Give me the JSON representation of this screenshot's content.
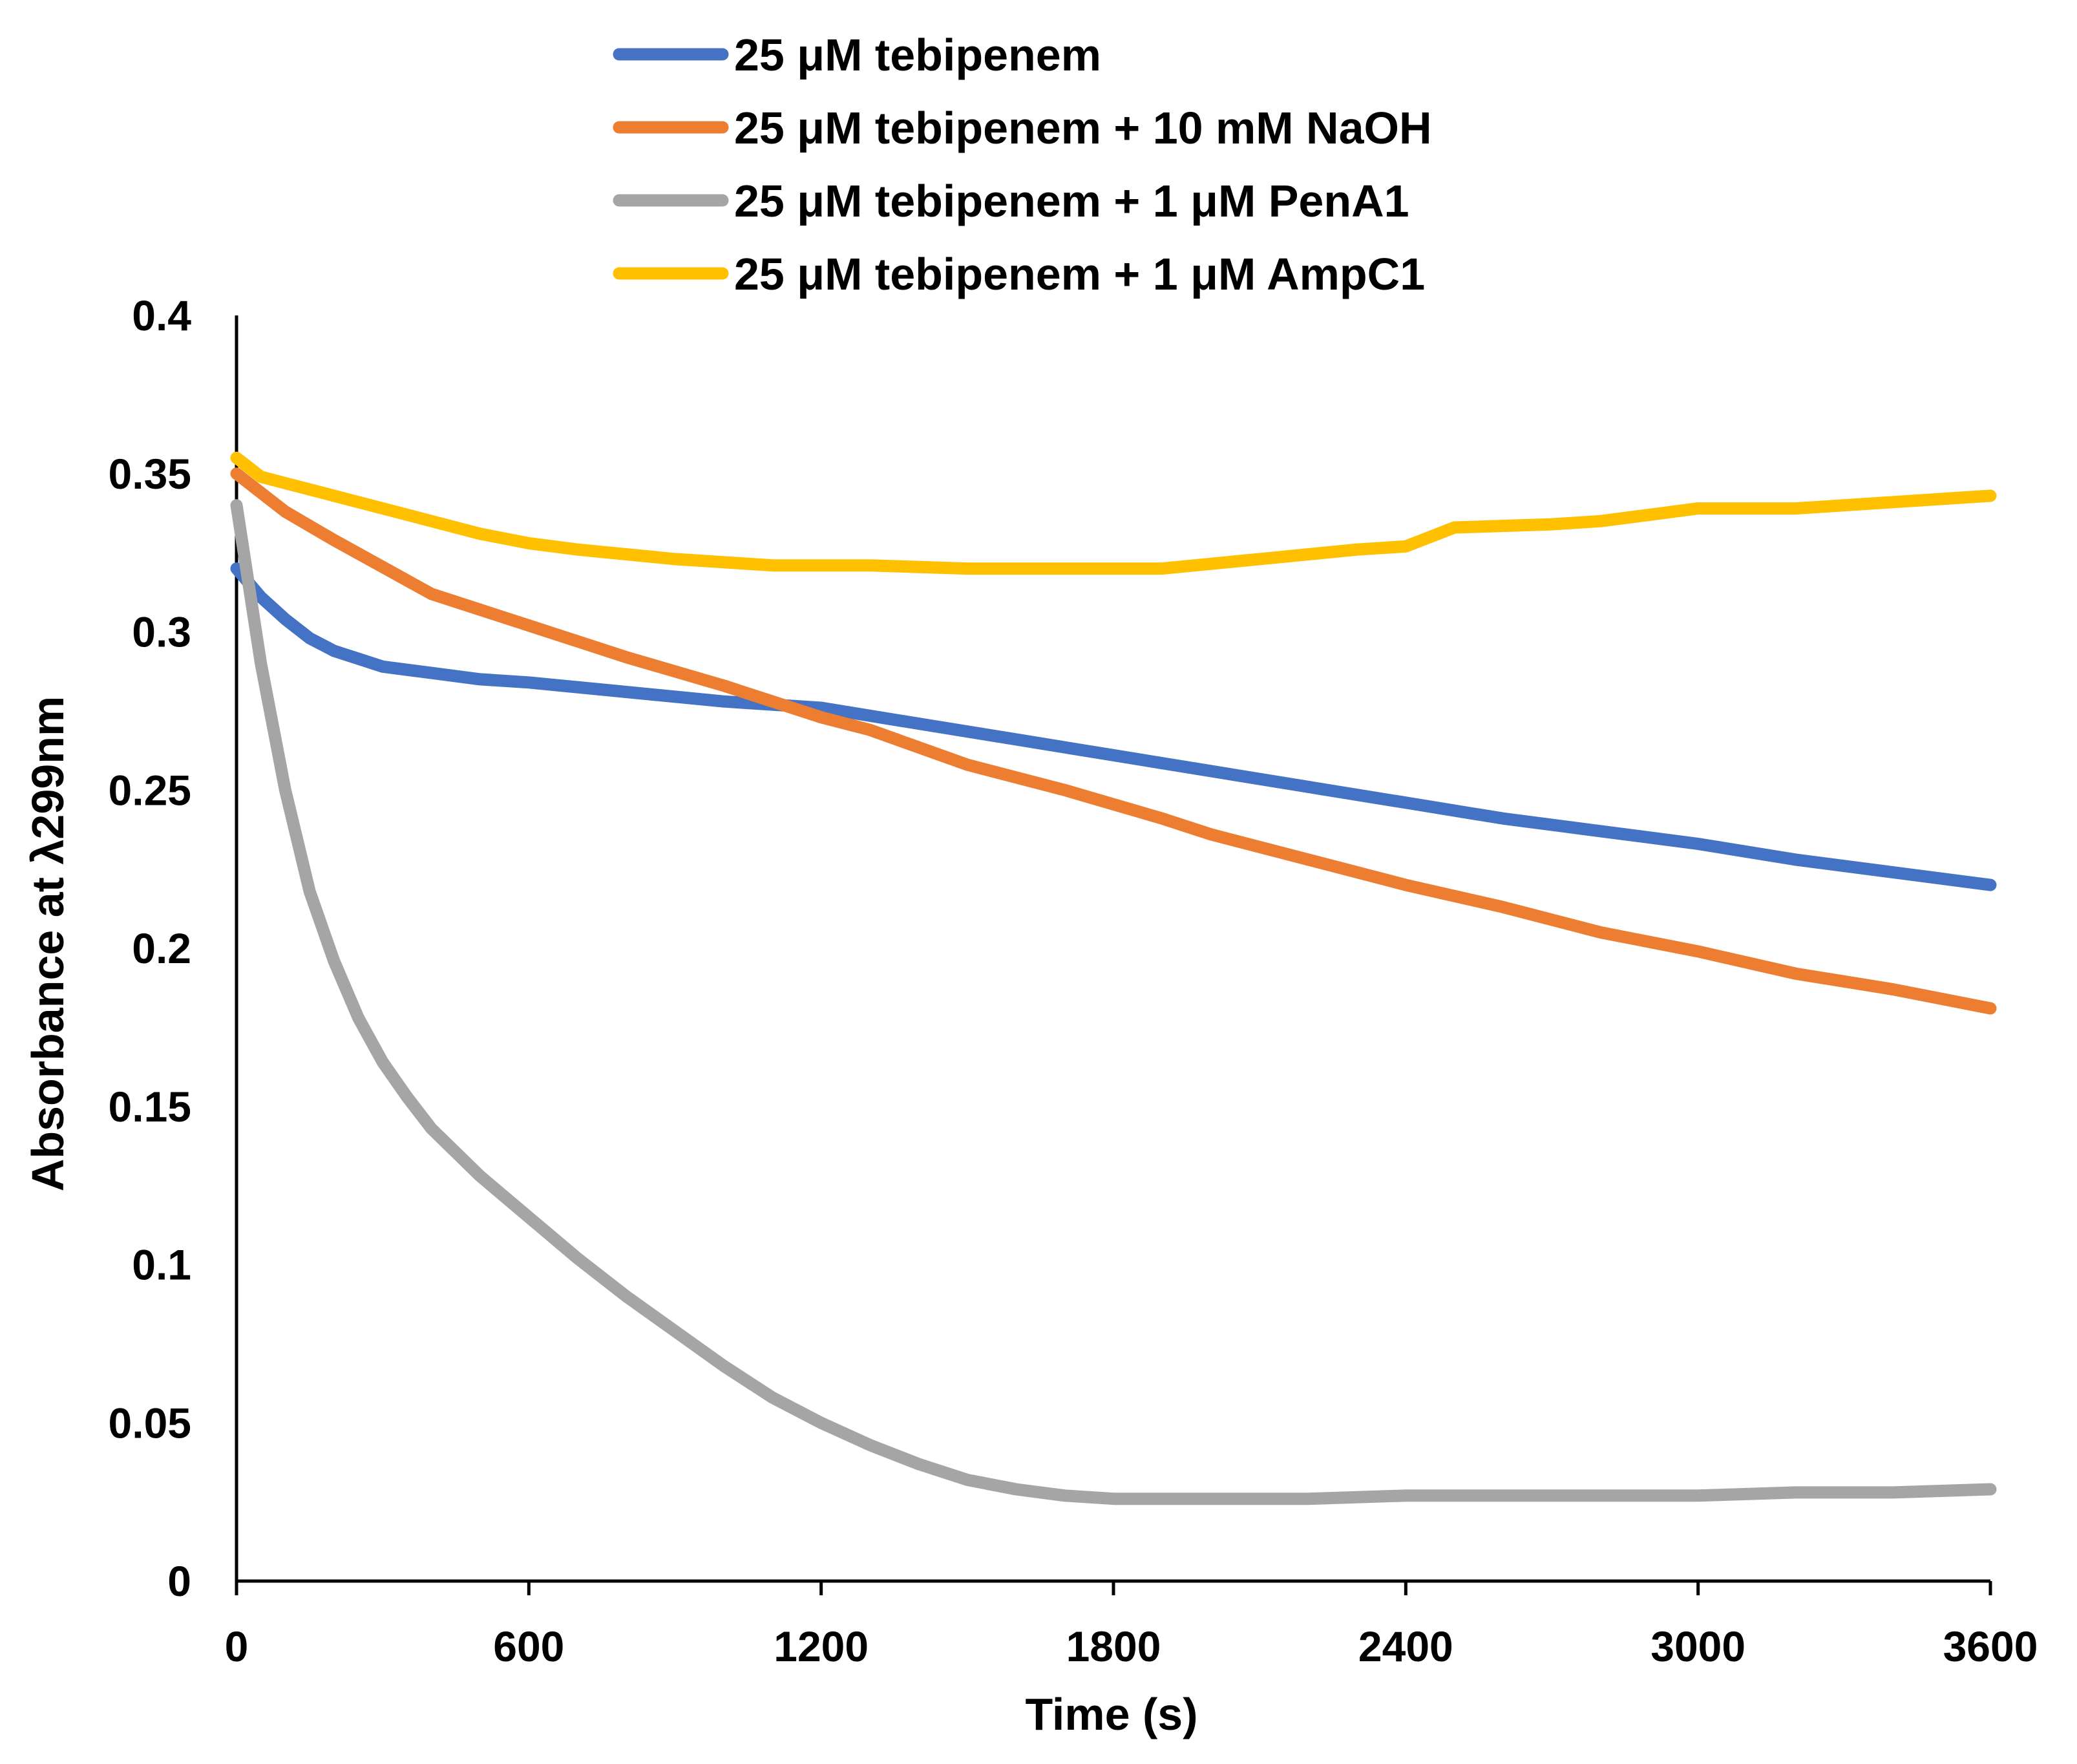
{
  "chart_data": {
    "type": "line",
    "title": "",
    "xlabel": "Time (s)",
    "ylabel": "Absorbance  at λ299nm",
    "xlim": [
      0,
      3600
    ],
    "ylim": [
      0,
      0.4
    ],
    "xticks": [
      "0",
      "600",
      "1200",
      "1800",
      "2400",
      "3000",
      "3600"
    ],
    "yticks": [
      "0",
      "0.05",
      "0.1",
      "0.15",
      "0.2",
      "0.25",
      "0.3",
      "0.35",
      "0.4"
    ],
    "grid": false,
    "legend_position": "top",
    "series": [
      {
        "name": "25 μM tebipenem",
        "color": "#4472C4",
        "points": [
          [
            0,
            0.32
          ],
          [
            50,
            0.311
          ],
          [
            100,
            0.304
          ],
          [
            150,
            0.298
          ],
          [
            200,
            0.294
          ],
          [
            300,
            0.289
          ],
          [
            400,
            0.287
          ],
          [
            500,
            0.285
          ],
          [
            600,
            0.284
          ],
          [
            800,
            0.281
          ],
          [
            1000,
            0.278
          ],
          [
            1200,
            0.276
          ],
          [
            1400,
            0.271
          ],
          [
            1600,
            0.266
          ],
          [
            1800,
            0.261
          ],
          [
            2000,
            0.256
          ],
          [
            2200,
            0.251
          ],
          [
            2400,
            0.246
          ],
          [
            2600,
            0.241
          ],
          [
            2800,
            0.237
          ],
          [
            3000,
            0.233
          ],
          [
            3200,
            0.228
          ],
          [
            3400,
            0.224
          ],
          [
            3600,
            0.22
          ]
        ]
      },
      {
        "name": "25 μM tebipenem + 10 mM NaOH",
        "color": "#ED7D31",
        "points": [
          [
            0,
            0.35
          ],
          [
            100,
            0.338
          ],
          [
            200,
            0.329
          ],
          [
            400,
            0.312
          ],
          [
            600,
            0.302
          ],
          [
            800,
            0.292
          ],
          [
            1000,
            0.283
          ],
          [
            1200,
            0.273
          ],
          [
            1300,
            0.269
          ],
          [
            1500,
            0.258
          ],
          [
            1700,
            0.25
          ],
          [
            1900,
            0.241
          ],
          [
            2000,
            0.236
          ],
          [
            2200,
            0.228
          ],
          [
            2400,
            0.22
          ],
          [
            2600,
            0.213
          ],
          [
            2800,
            0.205
          ],
          [
            3000,
            0.199
          ],
          [
            3200,
            0.192
          ],
          [
            3400,
            0.187
          ],
          [
            3600,
            0.181
          ]
        ]
      },
      {
        "name": "25 μM tebipenem + 1 μM PenA1",
        "color": "#A5A5A5",
        "points": [
          [
            0,
            0.34
          ],
          [
            50,
            0.29
          ],
          [
            100,
            0.25
          ],
          [
            150,
            0.218
          ],
          [
            200,
            0.196
          ],
          [
            250,
            0.178
          ],
          [
            300,
            0.164
          ],
          [
            350,
            0.153
          ],
          [
            400,
            0.143
          ],
          [
            500,
            0.128
          ],
          [
            600,
            0.115
          ],
          [
            700,
            0.102
          ],
          [
            800,
            0.09
          ],
          [
            900,
            0.079
          ],
          [
            1000,
            0.068
          ],
          [
            1100,
            0.058
          ],
          [
            1200,
            0.05
          ],
          [
            1300,
            0.043
          ],
          [
            1400,
            0.037
          ],
          [
            1500,
            0.032
          ],
          [
            1600,
            0.029
          ],
          [
            1700,
            0.027
          ],
          [
            1800,
            0.026
          ],
          [
            2000,
            0.026
          ],
          [
            2200,
            0.026
          ],
          [
            2400,
            0.027
          ],
          [
            2600,
            0.027
          ],
          [
            2800,
            0.027
          ],
          [
            3000,
            0.027
          ],
          [
            3200,
            0.028
          ],
          [
            3400,
            0.028
          ],
          [
            3600,
            0.029
          ]
        ]
      },
      {
        "name": "25 μM tebipenem + 1 μM AmpC1",
        "color": "#FFC000",
        "points": [
          [
            0,
            0.355
          ],
          [
            50,
            0.349
          ],
          [
            100,
            0.347
          ],
          [
            200,
            0.343
          ],
          [
            300,
            0.339
          ],
          [
            400,
            0.335
          ],
          [
            500,
            0.331
          ],
          [
            600,
            0.328
          ],
          [
            700,
            0.326
          ],
          [
            900,
            0.323
          ],
          [
            1100,
            0.321
          ],
          [
            1300,
            0.321
          ],
          [
            1500,
            0.32
          ],
          [
            1700,
            0.32
          ],
          [
            1900,
            0.32
          ],
          [
            2100,
            0.323
          ],
          [
            2300,
            0.326
          ],
          [
            2400,
            0.327
          ],
          [
            2500,
            0.333
          ],
          [
            2700,
            0.334
          ],
          [
            2800,
            0.335
          ],
          [
            2900,
            0.337
          ],
          [
            3000,
            0.339
          ],
          [
            3200,
            0.339
          ],
          [
            3400,
            0.341
          ],
          [
            3500,
            0.342
          ],
          [
            3600,
            0.343
          ]
        ]
      }
    ]
  }
}
